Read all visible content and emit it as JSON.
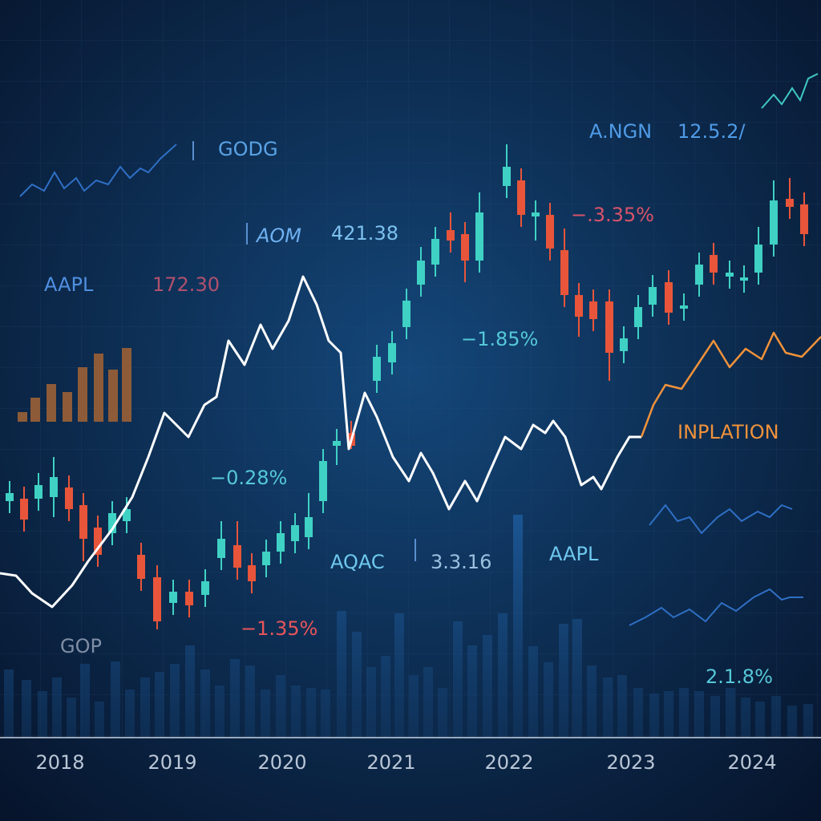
{
  "labels": [
    "GODG",
    "A.NGN",
    "12.5.2/",
    "AOM",
    "421.38",
    "−.3.35%",
    "AAPL",
    "172.30",
    "−1.85%",
    "INPLATION",
    "−0.28%",
    "AQAC",
    "3.3.16",
    "AAPL",
    "−1.35%",
    "GOP",
    "2.1.8%"
  ],
  "axis": {
    "years": [
      "2018",
      "2019",
      "2020",
      "2021",
      "2022",
      "2023",
      "2024"
    ]
  }
}
